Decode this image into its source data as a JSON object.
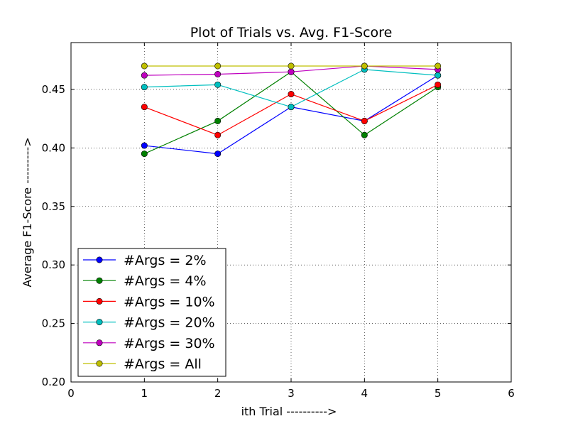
{
  "chart_data": {
    "type": "line",
    "title": "Plot of Trials vs. Avg. F1-Score",
    "xlabel": "ith Trial ---------->",
    "ylabel": "Average F1-Score --------->",
    "xlim": [
      0,
      6
    ],
    "ylim": [
      0.2,
      0.49
    ],
    "xticks": [
      "0",
      "1",
      "2",
      "3",
      "4",
      "5",
      "6"
    ],
    "yticks": [
      "0.20",
      "0.25",
      "0.30",
      "0.35",
      "0.40",
      "0.45"
    ],
    "grid": true,
    "legend_position": "lower-left",
    "x": [
      1,
      2,
      3,
      4,
      5
    ],
    "series": [
      {
        "name": "#Args = 2%",
        "color": "#0000ff",
        "values": [
          0.402,
          0.395,
          0.435,
          0.423,
          0.462
        ]
      },
      {
        "name": "#Args = 4%",
        "color": "#008000",
        "values": [
          0.395,
          0.423,
          0.465,
          0.411,
          0.452
        ]
      },
      {
        "name": "#Args = 10%",
        "color": "#ff0000",
        "values": [
          0.435,
          0.411,
          0.446,
          0.423,
          0.454
        ]
      },
      {
        "name": "#Args = 20%",
        "color": "#00bfbf",
        "values": [
          0.452,
          0.454,
          0.435,
          0.467,
          0.462
        ]
      },
      {
        "name": "#Args = 30%",
        "color": "#bf00bf",
        "values": [
          0.462,
          0.463,
          0.465,
          0.47,
          0.467
        ]
      },
      {
        "name": "#Args = All",
        "color": "#bfbf00",
        "values": [
          0.47,
          0.47,
          0.47,
          0.47,
          0.47
        ]
      }
    ]
  }
}
